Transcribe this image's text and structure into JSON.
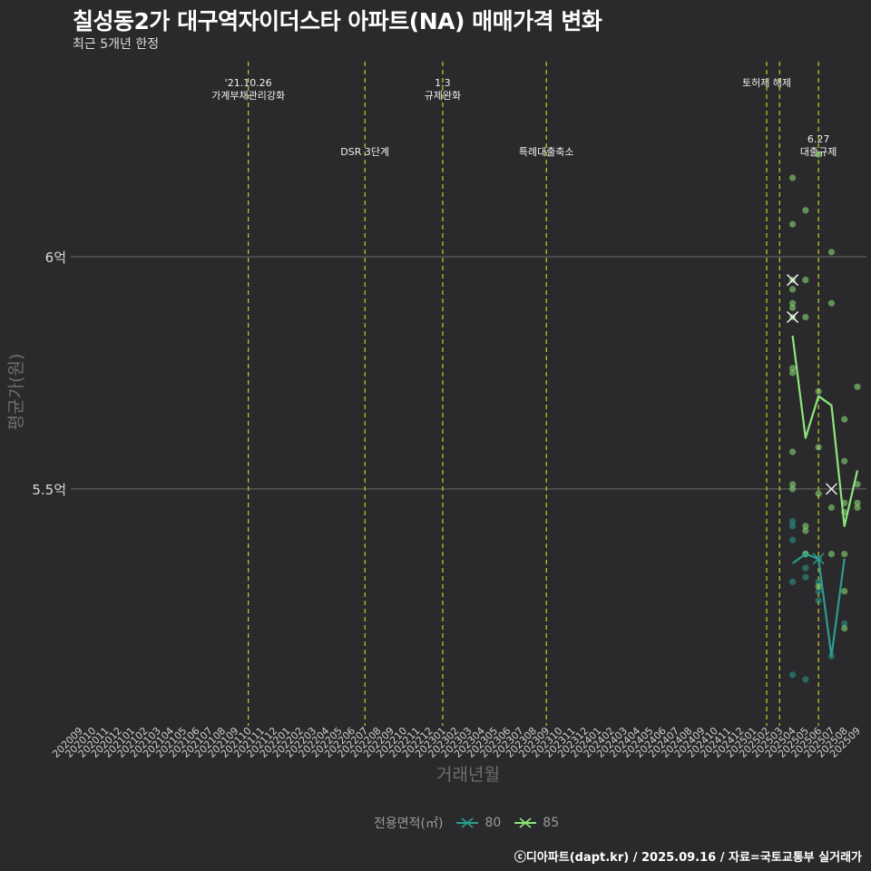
{
  "title": "칠성동2가 대구역자이더스타 아파트(NA) 매매가격 변화",
  "subtitle": "최근 5개년 한정",
  "caption": "ⓒ디아파트(dapt.kr) / 2025.09.16 / 자료=국토교통부 실거래가",
  "legend": {
    "title": "전용면적(㎡)",
    "items": [
      {
        "label": "80",
        "color": "#2a9d8f"
      },
      {
        "label": "85",
        "color": "#8ee67a"
      }
    ]
  },
  "chart_data": {
    "type": "line",
    "xlabel": "거래년월",
    "ylabel": "평균가(원)",
    "y_ticks": [
      {
        "value": 5.5,
        "label": "5.5억"
      },
      {
        "value": 6.0,
        "label": "6억"
      }
    ],
    "ylim": [
      4.99,
      6.42
    ],
    "grid": true,
    "legend_position": "bottom",
    "x_categories": [
      "202009",
      "202010",
      "202011",
      "202012",
      "202101",
      "202102",
      "202103",
      "202104",
      "202105",
      "202106",
      "202107",
      "202108",
      "202109",
      "202110",
      "202111",
      "202112",
      "202201",
      "202202",
      "202203",
      "202204",
      "202205",
      "202206",
      "202207",
      "202208",
      "202209",
      "202210",
      "202211",
      "202212",
      "202301",
      "202302",
      "202303",
      "202304",
      "202305",
      "202306",
      "202307",
      "202308",
      "202309",
      "202310",
      "202311",
      "202312",
      "202401",
      "202402",
      "202403",
      "202404",
      "202405",
      "202406",
      "202407",
      "202408",
      "202409",
      "202410",
      "202411",
      "202412",
      "202501",
      "202502",
      "202503",
      "202504",
      "202505",
      "202506",
      "202507",
      "202508",
      "202509"
    ],
    "events": [
      {
        "x": "202110",
        "label": "'21.10.26\n가계부채관리강화",
        "level": 0
      },
      {
        "x": "202207",
        "label": "DSR 3단계",
        "level": 1
      },
      {
        "x": "202301",
        "label": "1.3\n규제완화",
        "level": 0
      },
      {
        "x": "202309",
        "label": "특례대출축소",
        "level": 1
      },
      {
        "x": "202502",
        "label": "토허제 해제",
        "level": 0
      },
      {
        "x": "202503",
        "label": "",
        "level": 0
      },
      {
        "x": "202506",
        "label": "6.27\n대출규제",
        "level": 1
      }
    ],
    "series": [
      {
        "name": "80",
        "color": "#2a9d8f",
        "line": [
          [
            "202504",
            5.34
          ],
          [
            "202505",
            5.36
          ],
          [
            "202506",
            5.35
          ],
          [
            "202507",
            5.14
          ],
          [
            "202508",
            5.35
          ]
        ],
        "markers": [
          [
            "202506",
            5.35
          ]
        ],
        "points": [
          [
            "202504",
            5.43
          ],
          [
            "202504",
            5.42
          ],
          [
            "202504",
            5.39
          ],
          [
            "202504",
            5.3
          ],
          [
            "202504",
            5.1
          ],
          [
            "202505",
            5.36
          ],
          [
            "202505",
            5.33
          ],
          [
            "202505",
            5.31
          ],
          [
            "202505",
            5.09
          ],
          [
            "202506",
            5.35
          ],
          [
            "202506",
            5.3
          ],
          [
            "202506",
            5.28
          ],
          [
            "202506",
            5.26
          ],
          [
            "202507",
            5.14
          ],
          [
            "202508",
            5.21
          ]
        ]
      },
      {
        "name": "85",
        "color": "#8ee67a",
        "line": [
          [
            "202504",
            5.83
          ],
          [
            "202505",
            5.61
          ],
          [
            "202506",
            5.7
          ],
          [
            "202507",
            5.68
          ],
          [
            "202508",
            5.42
          ],
          [
            "202509",
            5.54
          ]
        ],
        "markers": [
          [
            "202504",
            5.95
          ],
          [
            "202504",
            5.87
          ],
          [
            "202507",
            5.5
          ]
        ],
        "points": [
          [
            "202504",
            6.17
          ],
          [
            "202504",
            6.07
          ],
          [
            "202504",
            5.95
          ],
          [
            "202504",
            5.93
          ],
          [
            "202504",
            5.9
          ],
          [
            "202504",
            5.89
          ],
          [
            "202504",
            5.87
          ],
          [
            "202504",
            5.76
          ],
          [
            "202504",
            5.75
          ],
          [
            "202504",
            5.58
          ],
          [
            "202504",
            5.51
          ],
          [
            "202504",
            5.5
          ],
          [
            "202505",
            6.1
          ],
          [
            "202505",
            5.95
          ],
          [
            "202505",
            5.87
          ],
          [
            "202505",
            5.42
          ],
          [
            "202505",
            5.41
          ],
          [
            "202505",
            5.36
          ],
          [
            "202506",
            6.22
          ],
          [
            "202506",
            5.71
          ],
          [
            "202506",
            5.59
          ],
          [
            "202506",
            5.49
          ],
          [
            "202506",
            5.29
          ],
          [
            "202507",
            6.01
          ],
          [
            "202507",
            5.9
          ],
          [
            "202507",
            5.46
          ],
          [
            "202507",
            5.36
          ],
          [
            "202508",
            5.65
          ],
          [
            "202508",
            5.56
          ],
          [
            "202508",
            5.47
          ],
          [
            "202508",
            5.45
          ],
          [
            "202508",
            5.36
          ],
          [
            "202508",
            5.28
          ],
          [
            "202508",
            5.2
          ],
          [
            "202509",
            5.72
          ],
          [
            "202509",
            5.51
          ],
          [
            "202509",
            5.47
          ],
          [
            "202509",
            5.46
          ]
        ]
      }
    ]
  }
}
